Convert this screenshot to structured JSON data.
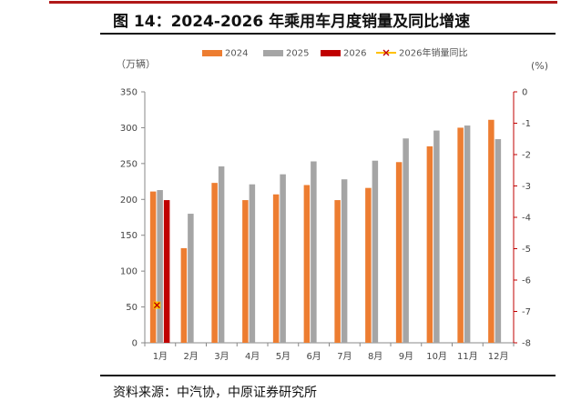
{
  "title": "图 14：2024-2026 年乘用车月度销量及同比增速",
  "source": "资料来源：中汽协，中原证券研究所",
  "chart_data": {
    "type": "bar",
    "categories": [
      "1月",
      "2月",
      "3月",
      "4月",
      "5月",
      "6月",
      "7月",
      "8月",
      "9月",
      "10月",
      "11月",
      "12月"
    ],
    "series": [
      {
        "name": "2024",
        "color": "#ED7D31",
        "axis": "left",
        "values": [
          211,
          132,
          223,
          199,
          207,
          220,
          199,
          216,
          252,
          274,
          300,
          311
        ]
      },
      {
        "name": "2025",
        "color": "#A5A5A5",
        "axis": "left",
        "values": [
          213,
          180,
          246,
          221,
          235,
          253,
          228,
          254,
          285,
          296,
          303,
          284
        ]
      },
      {
        "name": "2026",
        "color": "#C00000",
        "axis": "left",
        "values": [
          199,
          null,
          null,
          null,
          null,
          null,
          null,
          null,
          null,
          null,
          null,
          null
        ]
      },
      {
        "name": "2026年销量同比",
        "color": "#FFC000",
        "axis": "right",
        "type": "line",
        "marker": "x",
        "values": [
          -6.8,
          null,
          null,
          null,
          null,
          null,
          null,
          null,
          null,
          null,
          null,
          null
        ]
      }
    ],
    "ylabel_left": "（万辆）",
    "ylabel_right": "(%)",
    "ylim_left": [
      0,
      350
    ],
    "yticks_left": [
      "350",
      "300",
      "250",
      "200",
      "150",
      "100",
      "50",
      "0"
    ],
    "ylim_right": [
      -8,
      0
    ],
    "yticks_right": [
      "0",
      "-1",
      "-2",
      "-3",
      "-4",
      "-5",
      "-6",
      "-7",
      "-8"
    ],
    "legend": "top"
  }
}
